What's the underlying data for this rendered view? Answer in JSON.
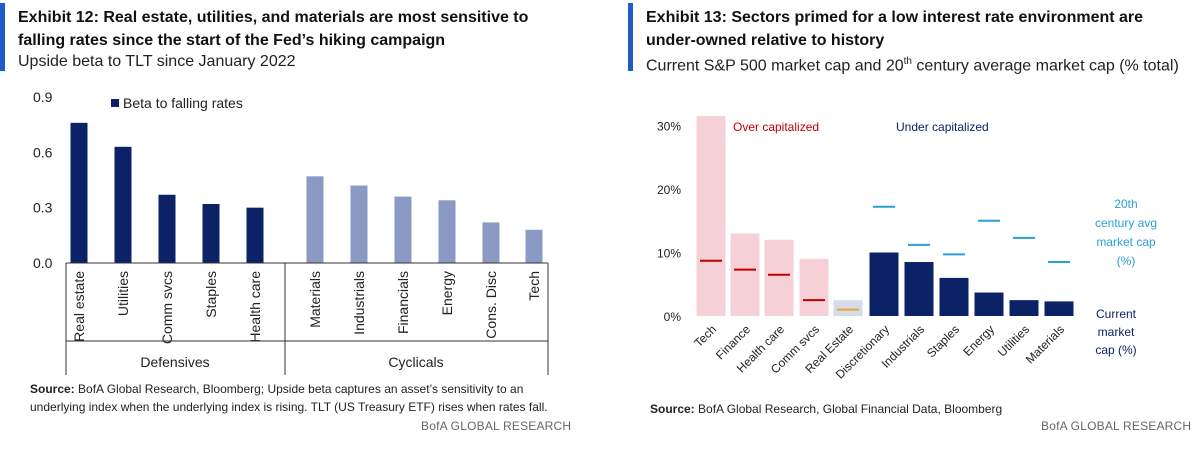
{
  "exhibit12": {
    "title": "Exhibit 12: Real estate, utilities, and materials are most sensitive to falling rates since the start of the Fed’s hiking campaign",
    "subtitle": "Upside beta to TLT since January 2022",
    "source_label": "Source:",
    "source_text": " BofA Global Research, Bloomberg; Upside beta captures an asset’s sensitivity to an underlying index when the underlying index is rising. TLT (US Treasury ETF) rises when rates fall.",
    "brand": "BofA GLOBAL RESEARCH",
    "colors": {
      "defensives": "#0c2266",
      "cyclicals": "#8b9ac4",
      "accent": "#1f5cc8"
    }
  },
  "exhibit13": {
    "title": "Exhibit 13: Sectors primed for a low interest rate environment are under-owned relative to history",
    "subtitle_pre": "Current S&P 500 market cap and 20",
    "subtitle_sup": "th",
    "subtitle_post": " century average market cap (% total)",
    "source_label": "Source:",
    "source_text": " BofA Global Research, Global Financial Data, Bloomberg",
    "brand": "BofA GLOBAL RESEARCH",
    "colors": {
      "over_bar": "#f5d0d6",
      "under_bar": "#0c2266",
      "real_estate_bar": "#d6dbea",
      "avg_over": "#c00000",
      "avg_under": "#2a9fd6",
      "avg_real_estate": "#f0a030",
      "over_label": "#c00000",
      "under_label": "#0c2266"
    }
  },
  "chart_data": [
    {
      "type": "bar",
      "categories": [
        "Real estate",
        "Utilities",
        "Comm svcs",
        "Staples",
        "Health care",
        "Materials",
        "Industrials",
        "Financials",
        "Energy",
        "Cons. Disc",
        "Tech"
      ],
      "groups": [
        {
          "name": "Defensives",
          "categories": [
            "Real estate",
            "Utilities",
            "Comm svcs",
            "Staples",
            "Health care"
          ]
        },
        {
          "name": "Cyclicals",
          "categories": [
            "Materials",
            "Industrials",
            "Financials",
            "Energy",
            "Cons. Disc",
            "Tech"
          ]
        }
      ],
      "series": [
        {
          "name": "Beta to falling rates",
          "values": [
            0.76,
            0.63,
            0.37,
            0.32,
            0.3,
            0.47,
            0.42,
            0.36,
            0.34,
            0.22,
            0.18
          ]
        }
      ],
      "yticks": [
        "0.9",
        "0.6",
        "0.3",
        "0.0"
      ],
      "ylim": [
        0,
        0.9
      ],
      "legend": "top-left"
    },
    {
      "type": "bar",
      "categories": [
        "Tech",
        "Finance",
        "Health care",
        "Comm svcs",
        "Real Estate",
        "Discretionary",
        "Industrials",
        "Staples",
        "Energy",
        "Utilities",
        "Materials"
      ],
      "series": [
        {
          "name": "Current market cap (%)",
          "values": [
            31.5,
            13,
            12,
            9,
            2.5,
            10,
            8.5,
            6,
            3.7,
            2.5,
            2.3
          ]
        },
        {
          "name": "20th century avg market cap (%)",
          "values": [
            8.7,
            7.3,
            6.5,
            2.5,
            1,
            17.2,
            11.2,
            9.7,
            15,
            12.3,
            8.5
          ]
        }
      ],
      "annotations": [
        "Over capitalized",
        "Under capitalized"
      ],
      "legend_current_lines": [
        "Current",
        "market",
        "cap (%)"
      ],
      "legend_avg_lines": [
        "20th",
        "century avg",
        "market cap",
        "(%)"
      ],
      "yticks": [
        "30%",
        "20%",
        "10%",
        "0%"
      ],
      "ylim": [
        0,
        31.5
      ]
    }
  ]
}
